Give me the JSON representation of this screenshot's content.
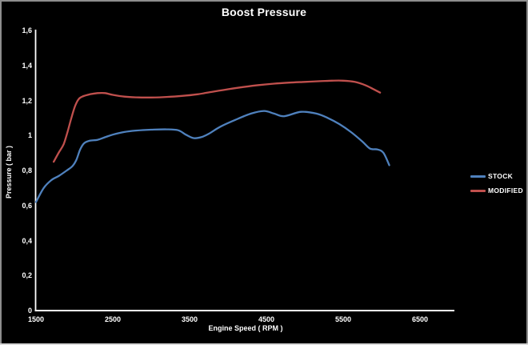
{
  "chart_data": {
    "type": "line",
    "title": "Boost Pressure",
    "xlabel": "Engine Speed ( RPM )",
    "ylabel": "Pressure ( bar )",
    "xlim": [
      1500,
      6940
    ],
    "ylim": [
      0,
      1.6
    ],
    "x_ticks": [
      1500,
      2500,
      3500,
      4500,
      5500,
      6500
    ],
    "y_ticks": [
      0,
      0.2,
      0.4,
      0.6,
      0.8,
      1,
      1.2,
      1.4,
      1.6
    ],
    "decimal_separator": ",",
    "grid": false,
    "background_color": "#000000",
    "axis_color": "#ffffff",
    "text_color": "#ffffff",
    "legend_position": "right",
    "series": [
      {
        "name": "STOCK",
        "color": "#4f81bd",
        "points": [
          [
            1500,
            0.62
          ],
          [
            1600,
            0.7
          ],
          [
            1700,
            0.745
          ],
          [
            1800,
            0.77
          ],
          [
            1900,
            0.8
          ],
          [
            1975,
            0.825
          ],
          [
            2025,
            0.86
          ],
          [
            2075,
            0.92
          ],
          [
            2125,
            0.955
          ],
          [
            2200,
            0.97
          ],
          [
            2300,
            0.975
          ],
          [
            2400,
            0.99
          ],
          [
            2500,
            1.005
          ],
          [
            2650,
            1.02
          ],
          [
            2800,
            1.028
          ],
          [
            3000,
            1.033
          ],
          [
            3200,
            1.035
          ],
          [
            3350,
            1.03
          ],
          [
            3450,
            1.005
          ],
          [
            3550,
            0.985
          ],
          [
            3650,
            0.99
          ],
          [
            3750,
            1.01
          ],
          [
            3900,
            1.05
          ],
          [
            4100,
            1.09
          ],
          [
            4300,
            1.125
          ],
          [
            4470,
            1.14
          ],
          [
            4600,
            1.125
          ],
          [
            4730,
            1.11
          ],
          [
            4950,
            1.135
          ],
          [
            5150,
            1.125
          ],
          [
            5300,
            1.1
          ],
          [
            5450,
            1.065
          ],
          [
            5600,
            1.02
          ],
          [
            5750,
            0.965
          ],
          [
            5850,
            0.925
          ],
          [
            5950,
            0.92
          ],
          [
            6025,
            0.9
          ],
          [
            6100,
            0.83
          ]
        ]
      },
      {
        "name": "MODIFIED",
        "color": "#c0504d",
        "points": [
          [
            1730,
            0.85
          ],
          [
            1800,
            0.905
          ],
          [
            1860,
            0.95
          ],
          [
            1910,
            1.02
          ],
          [
            1960,
            1.1
          ],
          [
            2010,
            1.17
          ],
          [
            2060,
            1.21
          ],
          [
            2120,
            1.225
          ],
          [
            2200,
            1.235
          ],
          [
            2300,
            1.242
          ],
          [
            2400,
            1.242
          ],
          [
            2500,
            1.232
          ],
          [
            2650,
            1.222
          ],
          [
            2800,
            1.218
          ],
          [
            3000,
            1.217
          ],
          [
            3200,
            1.22
          ],
          [
            3400,
            1.226
          ],
          [
            3600,
            1.235
          ],
          [
            3800,
            1.25
          ],
          [
            4000,
            1.264
          ],
          [
            4200,
            1.277
          ],
          [
            4400,
            1.288
          ],
          [
            4600,
            1.296
          ],
          [
            4800,
            1.302
          ],
          [
            5000,
            1.306
          ],
          [
            5200,
            1.31
          ],
          [
            5350,
            1.313
          ],
          [
            5500,
            1.313
          ],
          [
            5650,
            1.306
          ],
          [
            5800,
            1.285
          ],
          [
            5900,
            1.263
          ],
          [
            5980,
            1.245
          ]
        ]
      }
    ]
  }
}
